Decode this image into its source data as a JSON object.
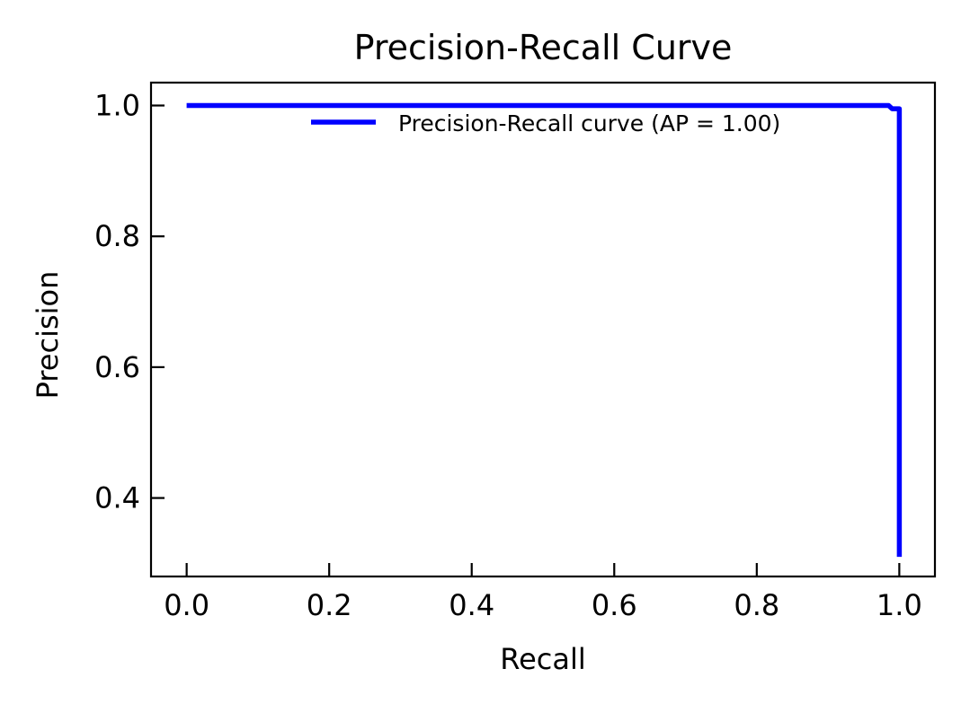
{
  "chart_data": {
    "type": "line",
    "title": "Precision-Recall Curve",
    "xlabel": "Recall",
    "ylabel": "Precision",
    "xlim": [
      -0.05,
      1.05
    ],
    "ylim": [
      0.28,
      1.035
    ],
    "xticks": [
      0.0,
      0.2,
      0.4,
      0.6,
      0.8,
      1.0
    ],
    "xtick_labels": [
      "0.0",
      "0.2",
      "0.4",
      "0.6",
      "0.8",
      "1.0"
    ],
    "yticks": [
      0.4,
      0.6,
      0.8,
      1.0
    ],
    "ytick_labels": [
      "0.4",
      "0.6",
      "0.8",
      "1.0"
    ],
    "grid": false,
    "legend_position": "top-right",
    "series": [
      {
        "name": "Precision-Recall curve (AP = 1.00)",
        "color": "#0000ff",
        "x": [
          0.0,
          0.985,
          0.99,
          1.0,
          1.0,
          1.0
        ],
        "y": [
          1.0,
          1.0,
          0.995,
          0.995,
          0.5,
          0.31
        ]
      }
    ]
  }
}
